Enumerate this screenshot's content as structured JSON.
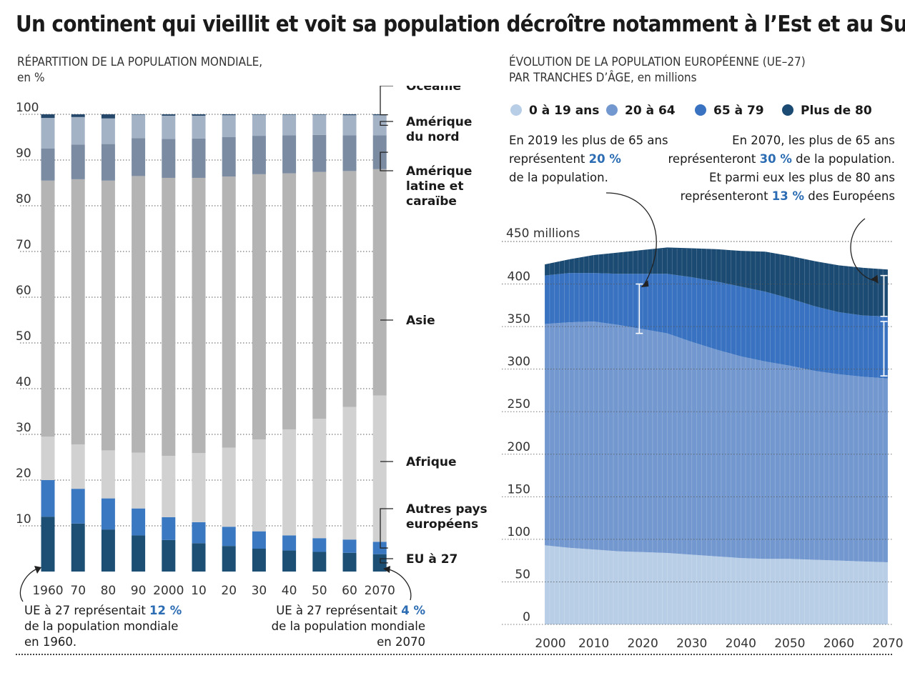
{
  "title": "Un continent qui vieillit et voit sa population décroître notamment à l’Est et au Sud",
  "chart_data": [
    {
      "type": "bar",
      "stacked": true,
      "title": "RÉPARTITION DE LA POPULATION MONDIALE,",
      "ylabel": "en %",
      "ylim": [
        0,
        100
      ],
      "yticks": [
        10,
        20,
        30,
        40,
        50,
        60,
        70,
        80,
        90,
        100
      ],
      "categories": [
        "1960",
        "70",
        "80",
        "90",
        "2000",
        "10",
        "20",
        "30",
        "40",
        "50",
        "60",
        "2070"
      ],
      "series": [
        {
          "name": "EU à 27",
          "color": "#1d4f74",
          "values": [
            12,
            10.5,
            9.2,
            7.9,
            6.9,
            6.2,
            5.6,
            5.0,
            4.6,
            4.3,
            4.1,
            3.8
          ]
        },
        {
          "name": "Autres pays européens",
          "color": "#3b78c2",
          "values": [
            8,
            7.6,
            6.8,
            5.9,
            5.0,
            4.6,
            4.2,
            3.8,
            3.3,
            3.0,
            2.9,
            2.7
          ]
        },
        {
          "name": "Afrique",
          "color": "#d1d1d1",
          "values": [
            9.5,
            9.7,
            10.5,
            12.2,
            13.4,
            15.1,
            17.3,
            20.1,
            23.2,
            26.1,
            29.0,
            32.0
          ]
        },
        {
          "name": "Asie",
          "color": "#b4b4b4",
          "values": [
            56,
            58,
            59,
            60.5,
            60.8,
            60.2,
            59.3,
            58.0,
            56.0,
            54.0,
            51.6,
            49.5
          ]
        },
        {
          "name": "Amérique latine et caraïbe",
          "color": "#7b8ba2",
          "values": [
            7.0,
            7.6,
            8.0,
            8.3,
            8.5,
            8.6,
            8.6,
            8.4,
            8.3,
            8.1,
            7.8,
            7.4
          ]
        },
        {
          "name": "Amérique du nord",
          "color": "#a4b2c6",
          "values": [
            6.7,
            6.0,
            5.6,
            5.1,
            5.1,
            5.0,
            4.8,
            4.6,
            4.5,
            4.4,
            4.4,
            4.4
          ]
        },
        {
          "name": "Océanie",
          "color": "#26486a",
          "values": [
            0.8,
            0.6,
            0.9,
            0.1,
            0.3,
            0.3,
            0.2,
            0.1,
            0.1,
            0.1,
            0.2,
            0.2
          ]
        }
      ],
      "annotations": [
        {
          "text_pre": "UE à 27 représentait ",
          "value": "12 %",
          "lines": [
            "de la population mondiale",
            "en 1960."
          ]
        },
        {
          "text_pre": "UE à 27 représentait ",
          "value": "4 %",
          "lines": [
            "de la population mondiale",
            "en 2070"
          ]
        }
      ]
    },
    {
      "type": "area",
      "stacked": true,
      "title_lines": [
        "ÉVOLUTION DE LA POPULATION EUROPÉENNE (UE–27)"
      ],
      "title_line2": "PAR TRANCHES D’ÂGE,",
      "unit": "en millions",
      "ylim": [
        0,
        450
      ],
      "yticks": [
        0,
        50,
        100,
        150,
        200,
        250,
        300,
        350,
        400
      ],
      "ytop_label": "450 millions",
      "xlim": [
        2000,
        2070
      ],
      "xticks": [
        2000,
        2010,
        2020,
        2030,
        2040,
        2050,
        2060,
        2070
      ],
      "x": [
        2000,
        2005,
        2010,
        2015,
        2020,
        2025,
        2030,
        2035,
        2040,
        2045,
        2050,
        2055,
        2060,
        2065,
        2070
      ],
      "series": [
        {
          "name": "0 à 19 ans",
          "color": "#b8cde6",
          "values": [
            93,
            90,
            88,
            86,
            85,
            84,
            82,
            80,
            78,
            77,
            77,
            76,
            75,
            74,
            73
          ]
        },
        {
          "name": "20 à 64",
          "color": "#7398cf",
          "values": [
            260,
            265,
            268,
            266,
            262,
            258,
            250,
            243,
            237,
            232,
            227,
            222,
            219,
            217,
            216
          ]
        },
        {
          "name": "65 à 79",
          "color": "#3872c0",
          "values": [
            57,
            58,
            57,
            60,
            65,
            70,
            76,
            80,
            82,
            82,
            79,
            76,
            73,
            72,
            73
          ]
        },
        {
          "name": "Plus de 80",
          "color": "#1b4a72",
          "values": [
            13,
            16,
            21,
            25,
            28,
            31,
            34,
            38,
            42,
            47,
            50,
            53,
            55,
            56,
            55
          ]
        }
      ],
      "annotations": [
        {
          "pre": "En 2019 les plus de 65 ans",
          "line2_pre": "représentent ",
          "value": "20 %",
          "line3": "de la population."
        },
        {
          "line1": "En 2070, les plus de 65 ans",
          "line2_pre": "représenteront ",
          "value": "30 %",
          "line2_post": " de la population.",
          "line3": "Et parmi eux les plus de 80 ans",
          "line4_pre": "représenteront ",
          "value2": "13 %",
          "line4_post": " des Européens"
        }
      ]
    }
  ]
}
